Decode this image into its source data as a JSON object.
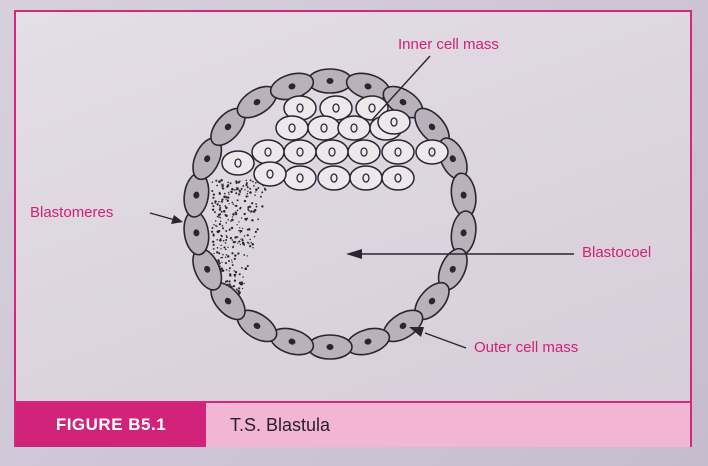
{
  "labels": {
    "inner_cell_mass": "Inner cell mass",
    "blastomeres": "Blastomeres",
    "blastocoel": "Blastocoel",
    "outer_cell_mass": "Outer cell mass"
  },
  "caption": {
    "figure_number": "FIGURE B5.1",
    "title": "T.S. Blastula"
  },
  "colors": {
    "accent": "#d4287a",
    "caption_tag": "#d2237a",
    "caption_bar": "#f2b6d4",
    "outer_cell_fill": "#b9b2bb",
    "inner_cell_fill": "#ece8ec",
    "outline": "#2b2530"
  }
}
